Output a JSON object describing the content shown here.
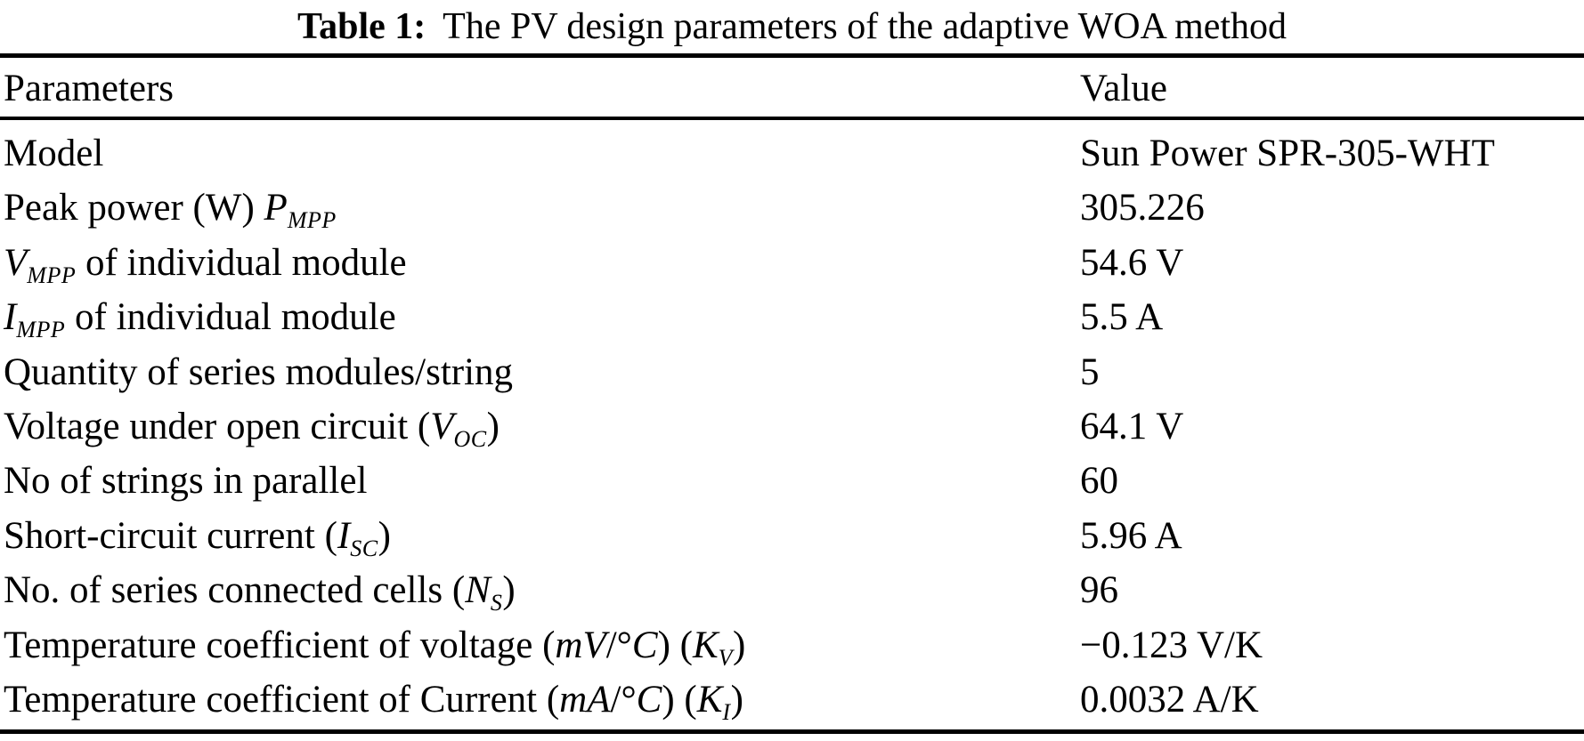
{
  "caption": {
    "label": "Table 1:",
    "text": "The PV design parameters of the adaptive WOA method"
  },
  "table": {
    "columns": [
      "Parameters",
      "Value"
    ],
    "rows": [
      {
        "param": [
          {
            "s": "r",
            "t": "Model"
          }
        ],
        "value": "Sun Power SPR-305-WHT"
      },
      {
        "param": [
          {
            "s": "r",
            "t": "Peak power (W) "
          },
          {
            "s": "i",
            "t": "P"
          },
          {
            "s": "is",
            "t": "MPP"
          }
        ],
        "value": "305.226"
      },
      {
        "param": [
          {
            "s": "i",
            "t": "V"
          },
          {
            "s": "is",
            "t": "MPP"
          },
          {
            "s": "r",
            "t": " of individual module"
          }
        ],
        "value": "54.6 V"
      },
      {
        "param": [
          {
            "s": "i",
            "t": "I"
          },
          {
            "s": "is",
            "t": "MPP"
          },
          {
            "s": "r",
            "t": " of individual module"
          }
        ],
        "value": "5.5 A"
      },
      {
        "param": [
          {
            "s": "r",
            "t": "Quantity of series modules/string"
          }
        ],
        "value": "5"
      },
      {
        "param": [
          {
            "s": "r",
            "t": "Voltage under open circuit ("
          },
          {
            "s": "i",
            "t": "V"
          },
          {
            "s": "is",
            "t": "OC"
          },
          {
            "s": "r",
            "t": ")"
          }
        ],
        "value": "64.1 V"
      },
      {
        "param": [
          {
            "s": "r",
            "t": "No of strings in parallel"
          }
        ],
        "value": "60"
      },
      {
        "param": [
          {
            "s": "r",
            "t": "Short-circuit current ("
          },
          {
            "s": "i",
            "t": "I"
          },
          {
            "s": "is",
            "t": "SC"
          },
          {
            "s": "r",
            "t": ")"
          }
        ],
        "value": "5.96 A"
      },
      {
        "param": [
          {
            "s": "r",
            "t": "No. of series connected cells ("
          },
          {
            "s": "i",
            "t": "N"
          },
          {
            "s": "is",
            "t": "S"
          },
          {
            "s": "r",
            "t": ")"
          }
        ],
        "value": "96"
      },
      {
        "param": [
          {
            "s": "r",
            "t": "Temperature coefficient of voltage ("
          },
          {
            "s": "i",
            "t": "mV"
          },
          {
            "s": "r",
            "t": "/°"
          },
          {
            "s": "i",
            "t": "C"
          },
          {
            "s": "r",
            "t": ") ("
          },
          {
            "s": "i",
            "t": "K"
          },
          {
            "s": "is",
            "t": "V"
          },
          {
            "s": "r",
            "t": ")"
          }
        ],
        "value": "−0.123 V/K"
      },
      {
        "param": [
          {
            "s": "r",
            "t": "Temperature coefficient of Current ("
          },
          {
            "s": "i",
            "t": "mA"
          },
          {
            "s": "r",
            "t": "/°"
          },
          {
            "s": "i",
            "t": "C"
          },
          {
            "s": "r",
            "t": ") ("
          },
          {
            "s": "i",
            "t": "K"
          },
          {
            "s": "is",
            "t": "I"
          },
          {
            "s": "r",
            "t": ")"
          }
        ],
        "value": "0.0032 A/K"
      }
    ]
  }
}
